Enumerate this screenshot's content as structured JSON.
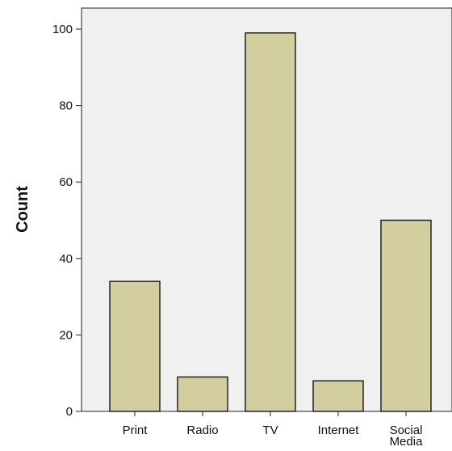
{
  "chart_data": {
    "type": "bar",
    "title": "",
    "xlabel": "",
    "ylabel": "Count",
    "categories": [
      "Print",
      "Radio",
      "TV",
      "Internet",
      "Social Media"
    ],
    "category_lines": [
      [
        "Print"
      ],
      [
        "Radio"
      ],
      [
        "TV"
      ],
      [
        "Internet"
      ],
      [
        "Social",
        "Media"
      ]
    ],
    "values": [
      34,
      9,
      99,
      8,
      50
    ],
    "ylim": [
      0,
      105
    ],
    "yticks": [
      0,
      20,
      40,
      60,
      80,
      100
    ],
    "grid": false,
    "legend": "none",
    "colors": {
      "bar_fill": "#d3ce9f",
      "bar_stroke": "#222222",
      "plot_bg": "#f0f0f0"
    }
  }
}
